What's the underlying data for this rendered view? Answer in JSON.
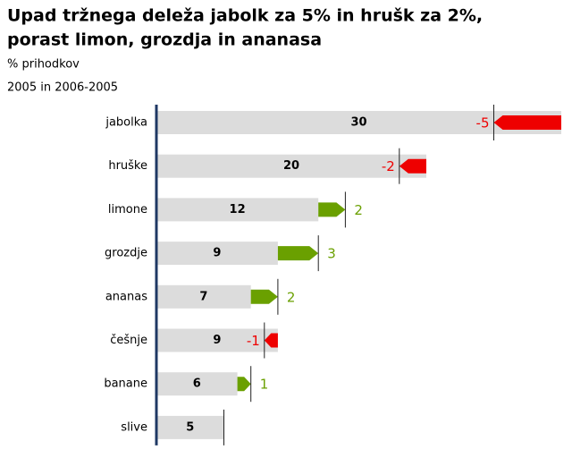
{
  "chart_data": {
    "type": "bar-change",
    "title": [
      "Upad tržnega deleža jabolk za 5% in hrušk za 2%,",
      "porast limon, grozdja in ananasa"
    ],
    "subtitle": "% prihodkov",
    "note": "2005 in 2006-2005",
    "categories": [
      "jabolka",
      "hruške",
      "limone",
      "grozdje",
      "ananas",
      "češnje",
      "banane",
      "slive"
    ],
    "values": [
      30,
      20,
      12,
      9,
      7,
      9,
      6,
      5
    ],
    "changes": [
      -5,
      -2,
      2,
      3,
      2,
      -1,
      1,
      null
    ],
    "xlim": [
      0,
      30
    ],
    "color": "#dcdcdc",
    "up_color": "#6aa000",
    "down_color": "#ee0000",
    "axis_color": "#1f3864"
  }
}
